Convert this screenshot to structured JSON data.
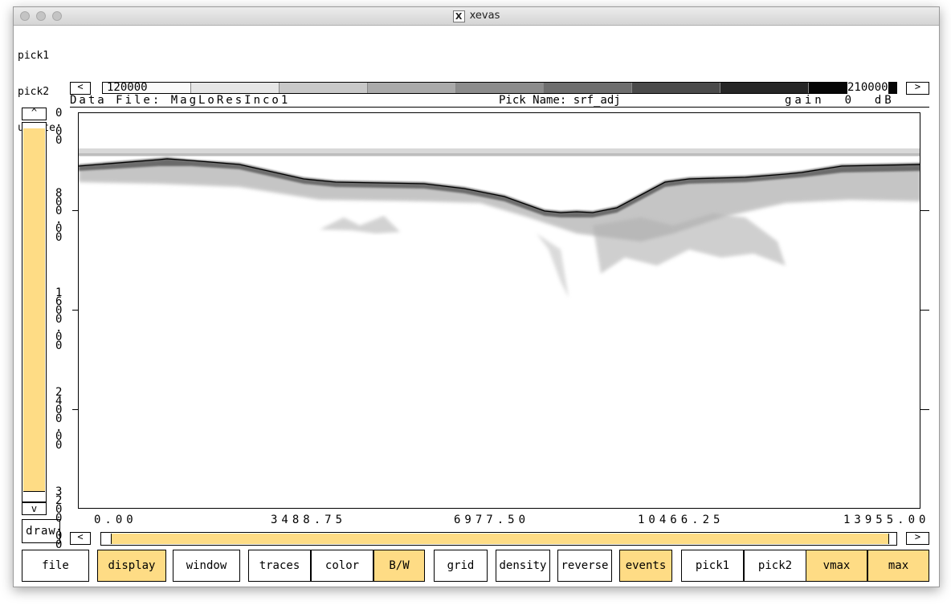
{
  "window": {
    "title": "xevas"
  },
  "menu_lines": [
    "pick1",
    "pick2",
    "update"
  ],
  "colorbar": {
    "min_label": "120000",
    "max_label": "210000",
    "left_arrow": "<",
    "right_arrow": ">",
    "swatches": [
      "#fafafa",
      "#e6e6e6",
      "#c8c8c8",
      "#aaaaaa",
      "#8c8c8c",
      "#6e6e6e",
      "#4a4a4a",
      "#262626",
      "#060606"
    ]
  },
  "info": {
    "data_file": "Data File: MagLoResInco1",
    "pick_name": "Pick Name: srf_adj",
    "gain": "gain  0  dB"
  },
  "y_axis_labels": [
    {
      "label": "0"
    },
    {
      "label": "8\n0\n0\n.\n0\n0"
    },
    {
      "label": "1\n6\n0\n0\n.\n0\n0"
    },
    {
      "label": "2\n4\n0\n0\n.\n0\n0"
    },
    {
      "label": "3\n2\n0\n0\n.\n0\n0"
    }
  ],
  "y_top_fragment": ".\n0\n0",
  "x_axis_labels": [
    "0.00",
    "3488.75",
    "6977.50",
    "10466.25",
    "13955.00"
  ],
  "scroll": {
    "up_arrow": "^",
    "down_arrow": "v",
    "left_arrow": "<",
    "right_arrow": ">"
  },
  "draw_button": "draw",
  "toolbar": [
    {
      "label": "file",
      "on": false
    },
    {
      "label": "display",
      "on": true
    },
    {
      "label": "window",
      "on": false
    },
    {
      "label": "traces",
      "on": false
    },
    {
      "label": "color",
      "on": false
    },
    {
      "label": "B/W",
      "on": true
    },
    {
      "label": "grid",
      "on": false
    },
    {
      "label": "density",
      "on": false
    },
    {
      "label": "reverse",
      "on": false
    },
    {
      "label": "events",
      "on": true
    },
    {
      "label": "pick1",
      "on": false
    },
    {
      "label": "pick2",
      "on": false
    },
    {
      "label": "vmax",
      "on": true
    },
    {
      "label": "max",
      "on": true
    }
  ],
  "colors": {
    "accent": "#fedc85",
    "pick_line": "#000000"
  }
}
